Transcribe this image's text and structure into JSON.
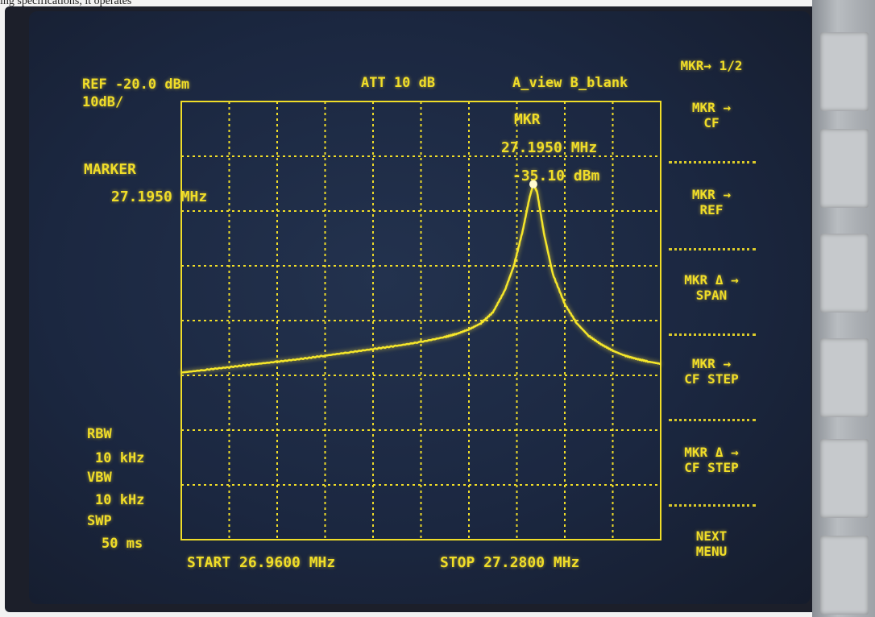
{
  "caption": "ing specifications, it operates",
  "header": {
    "ref": "REF -20.0 dBm",
    "scale": "10dB/",
    "att": "ATT 10 dB",
    "view": "A_view B_blank"
  },
  "marker_box": {
    "title": "MARKER",
    "freq": "27.1950 MHz"
  },
  "marker_readout": {
    "label": "MKR",
    "freq": "27.1950 MHz",
    "level": "-35.10 dBm"
  },
  "bandwidth": {
    "rbw_label": "RBW",
    "rbw_value": "10 kHz",
    "vbw_label": "VBW",
    "vbw_value": "10 kHz",
    "swp_label": "SWP",
    "swp_value": "50 ms"
  },
  "footer": {
    "start": "START 26.9600 MHz",
    "stop": "STOP 27.2800 MHz"
  },
  "softkeys": {
    "page": "MKR→ 1/2",
    "items": [
      {
        "line1": "MKR →",
        "line2": "CF"
      },
      {
        "line1": "MKR →",
        "line2": "REF"
      },
      {
        "line1": "MKR Δ →",
        "line2": "SPAN"
      },
      {
        "line1": "MKR →",
        "line2": "CF STEP"
      },
      {
        "line1": "MKR Δ →",
        "line2": "CF STEP"
      },
      {
        "line1": "NEXT",
        "line2": "MENU"
      }
    ]
  },
  "colors": {
    "trace": "#f5e62a",
    "screen": "#1b2740"
  },
  "chart_data": {
    "type": "line",
    "title": "",
    "xlabel": "",
    "ylabel": "",
    "x_unit": "MHz",
    "y_unit": "dBm",
    "xlim": [
      26.96,
      27.28
    ],
    "ylim": [
      -100,
      -20
    ],
    "grid": true,
    "series": [
      {
        "x": [
          26.96,
          26.976,
          26.992,
          27.008,
          27.024,
          27.04,
          27.056,
          27.072,
          27.088,
          27.104,
          27.12,
          27.136,
          27.144,
          27.152,
          27.16,
          27.168,
          27.176,
          27.182,
          27.188,
          27.1925,
          27.195,
          27.1975,
          27.202,
          27.208,
          27.216,
          27.224,
          27.232,
          27.24,
          27.248,
          27.256,
          27.264,
          27.272,
          27.28
        ],
        "y": [
          -69.5,
          -69.0,
          -68.5,
          -68.0,
          -67.5,
          -67.0,
          -66.4,
          -65.8,
          -65.2,
          -64.6,
          -63.9,
          -63.0,
          -62.4,
          -61.6,
          -60.5,
          -58.5,
          -54.5,
          -50.0,
          -43.5,
          -37.5,
          -35.1,
          -36.5,
          -44.0,
          -51.5,
          -57.0,
          -60.5,
          -62.8,
          -64.3,
          -65.5,
          -66.4,
          -67.0,
          -67.5,
          -67.9
        ]
      }
    ]
  }
}
